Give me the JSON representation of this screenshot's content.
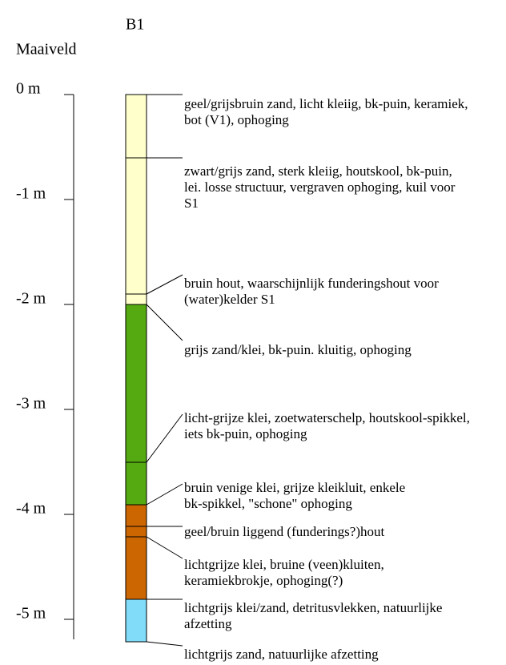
{
  "title": "B1",
  "surface_label": "Maaiveld",
  "depth_labels": [
    "0 m",
    "-1 m",
    "-2 m",
    "-3 m",
    "-4 m",
    "-5 m"
  ],
  "descriptions": [
    {
      "lines": [
        "geel/grijsbruin zand, licht kleiig, bk-puin, keramiek,",
        "bot (V1), ophoging"
      ]
    },
    {
      "lines": [
        "zwart/grijs zand, sterk kleiig, houtskool, bk-puin,",
        "lei. losse structuur, vergraven ophoging, kuil voor",
        "S1"
      ]
    },
    {
      "lines": [
        "bruin hout, waarschijnlijk funderingshout voor",
        "(water)kelder S1"
      ]
    },
    {
      "lines": [
        "grijs zand/klei, bk-puin. kluitig, ophoging"
      ]
    },
    {
      "lines": [
        "licht-grijze klei, zoetwaterschelp, houtskool-spikkel,",
        "iets bk-puin, ophoging"
      ]
    },
    {
      "lines": [
        "bruin venige klei, grijze kleikluit,  enkele",
        "bk-spikkel, \"schone\" ophoging"
      ]
    },
    {
      "lines": [
        "geel/bruin liggend (funderings?)hout"
      ]
    },
    {
      "lines": [
        "lichtgrijze klei, bruine (veen)kluiten,",
        "keramiekbrokje, ophoging(?)"
      ]
    },
    {
      "lines": [
        "lichtgrijs klei/zand, detritusvlekken, natuurlijke",
        "afzetting"
      ]
    },
    {
      "lines": [
        "lichtgrijs zand, natuurlijke afzetting"
      ]
    }
  ]
}
